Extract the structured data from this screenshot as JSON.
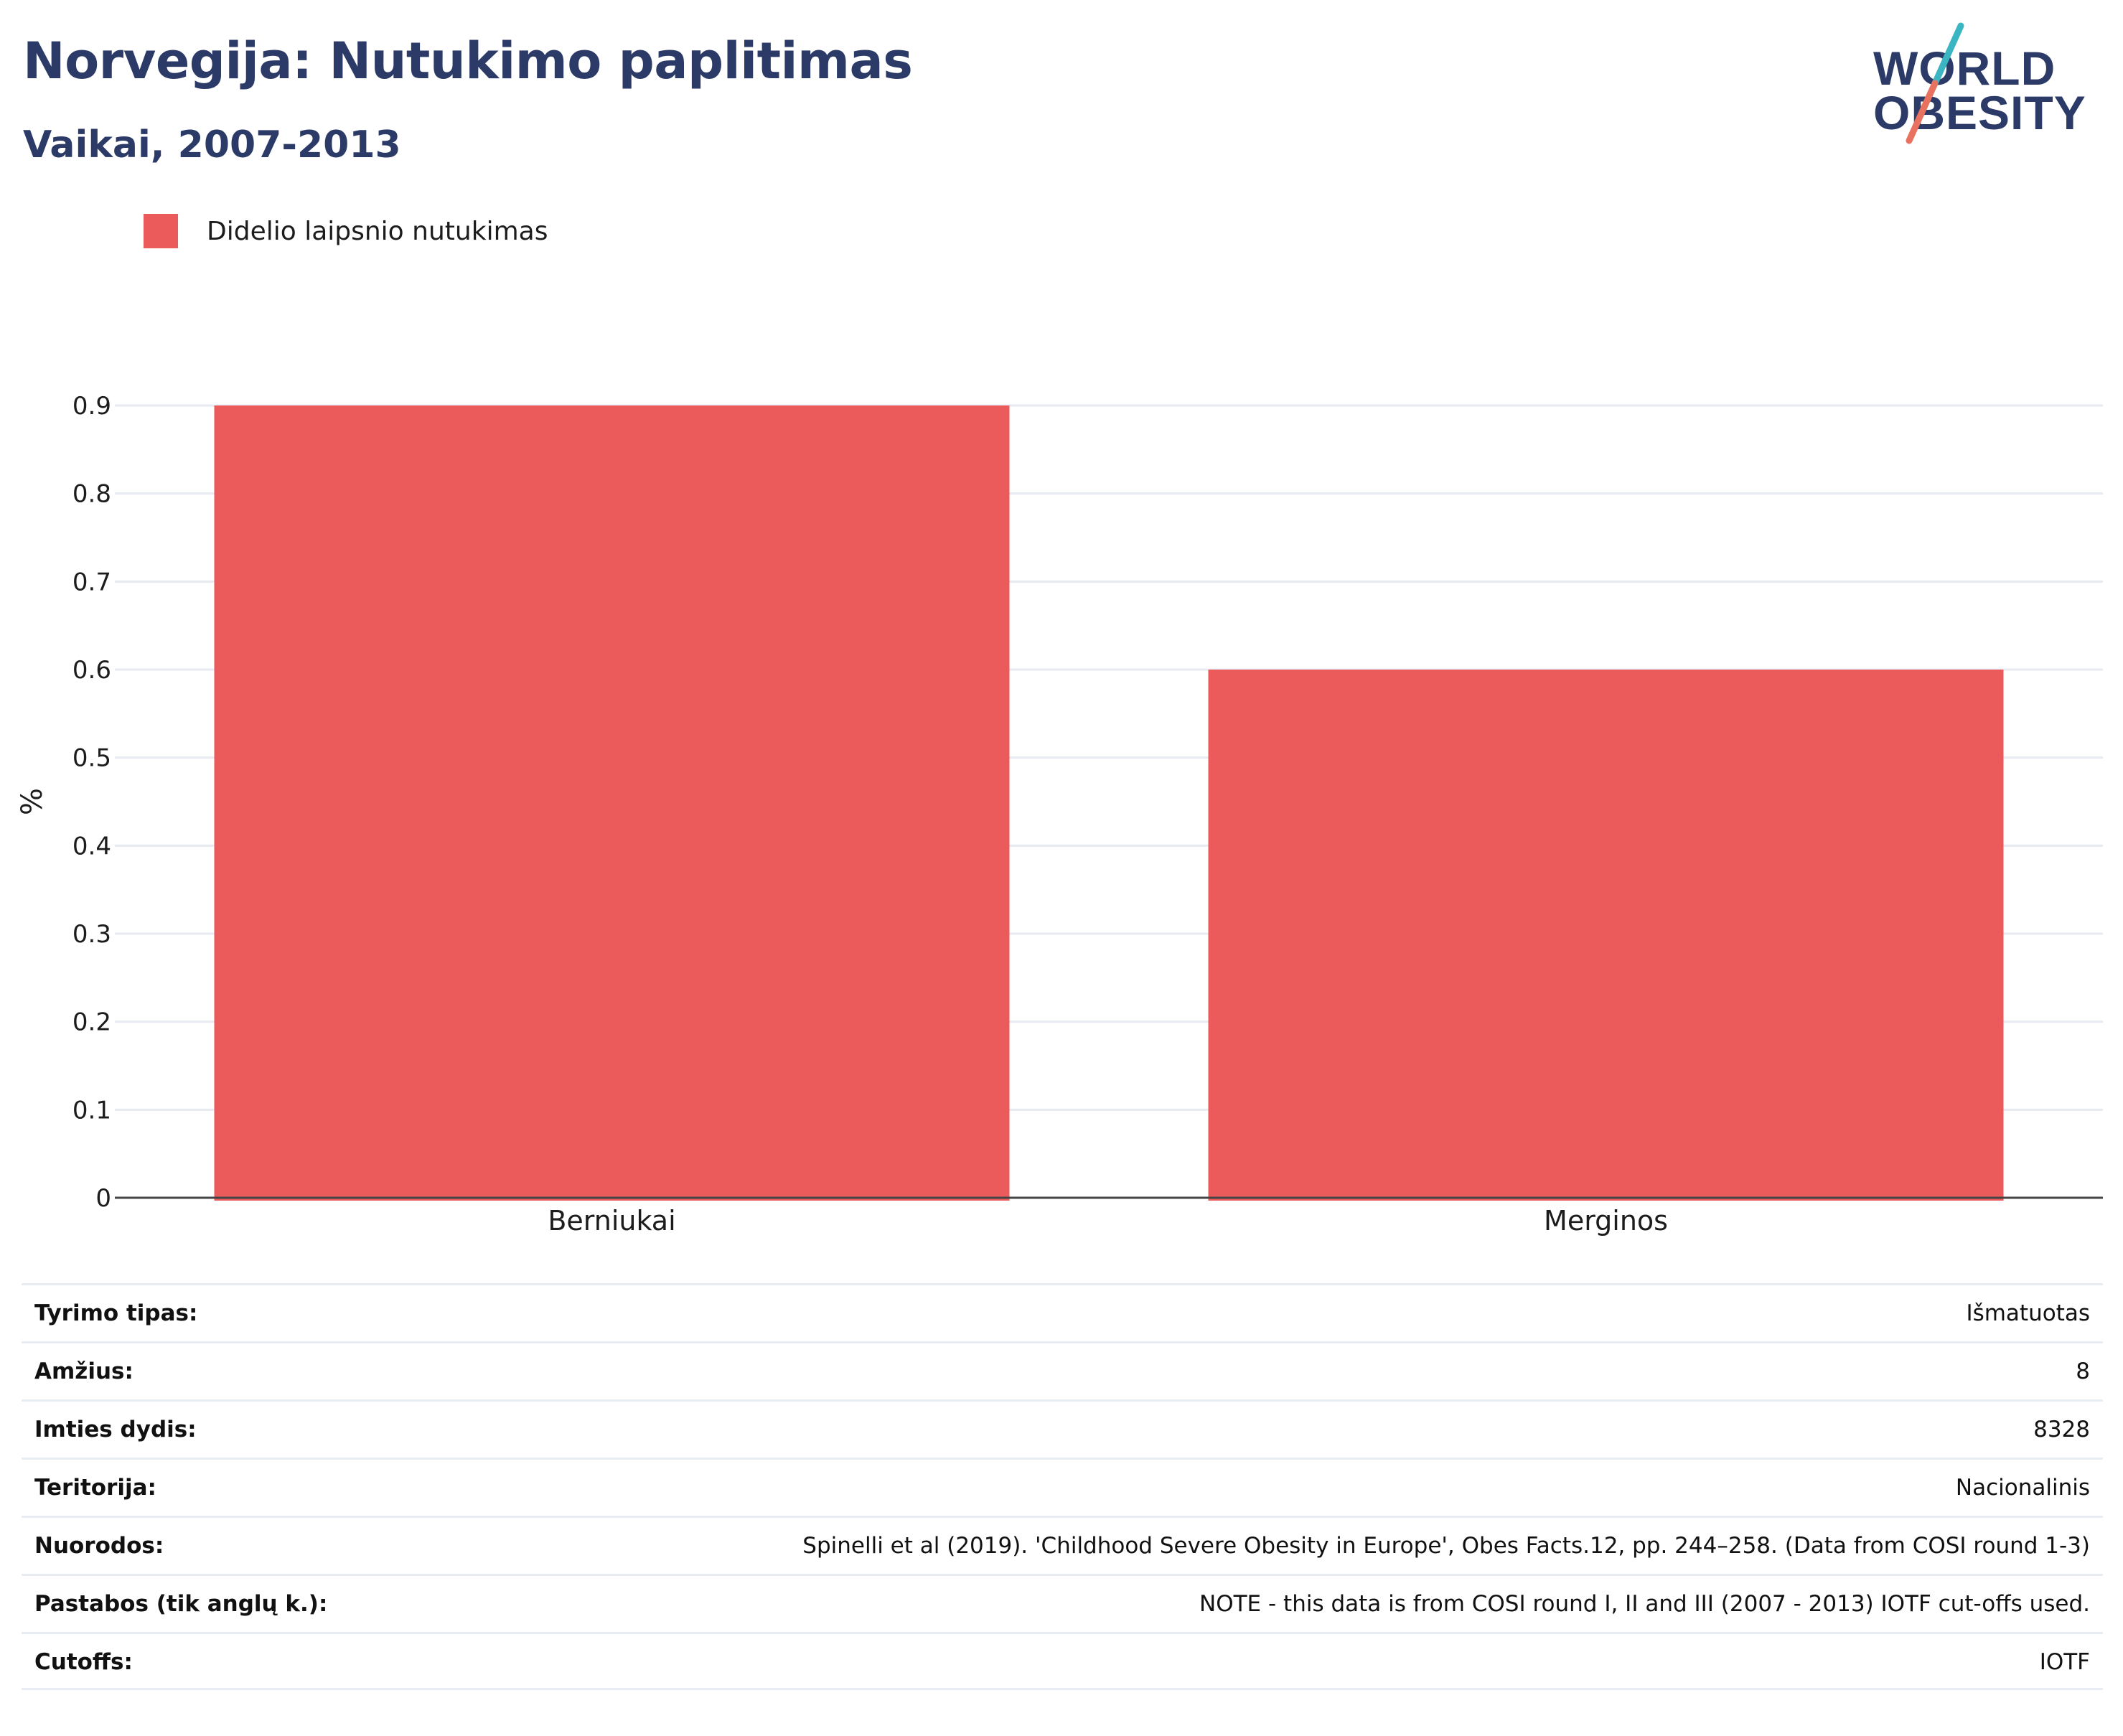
{
  "header": {
    "title": "Norvegija: Nutukimo paplitimas",
    "subtitle": "Vaikai, 2007-2013"
  },
  "logo": {
    "line1": "WORLD",
    "line2": "OBESITY",
    "colors": [
      "#2b3a67",
      "#3ab5c1",
      "#e8715f"
    ]
  },
  "legend": [
    {
      "label": "Didelio laipsnio nutukimas",
      "color": "#eb5b5b"
    }
  ],
  "chart_data": {
    "type": "bar",
    "categories": [
      "Berniukai",
      "Merginos"
    ],
    "series": [
      {
        "name": "Didelio laipsnio nutukimas",
        "values": [
          0.9,
          0.6
        ],
        "color": "#eb5b5b"
      }
    ],
    "ylabel": "%",
    "ylim": [
      0,
      0.9
    ],
    "yticks": [
      "0",
      "0.1",
      "0.2",
      "0.3",
      "0.4",
      "0.5",
      "0.6",
      "0.7",
      "0.8",
      "0.9"
    ],
    "grid": true,
    "legend_position": "top-left"
  },
  "info": [
    {
      "key": "Tyrimo tipas:",
      "value": "Išmatuotas"
    },
    {
      "key": "Amžius:",
      "value": "8"
    },
    {
      "key": "Imties dydis:",
      "value": "8328"
    },
    {
      "key": "Teritorija:",
      "value": "Nacionalinis"
    },
    {
      "key": "Nuorodos:",
      "value": "Spinelli et al (2019). 'Childhood Severe Obesity in Europe', Obes Facts.12, pp. 244–258. (Data from COSI round 1-3)"
    },
    {
      "key": "Pastabos (tik anglų k.):",
      "value": "NOTE - this data is from COSI round I, II and III (2007 - 2013) IOTF cut-offs used."
    },
    {
      "key": "Cutoffs:",
      "value": "IOTF"
    }
  ]
}
